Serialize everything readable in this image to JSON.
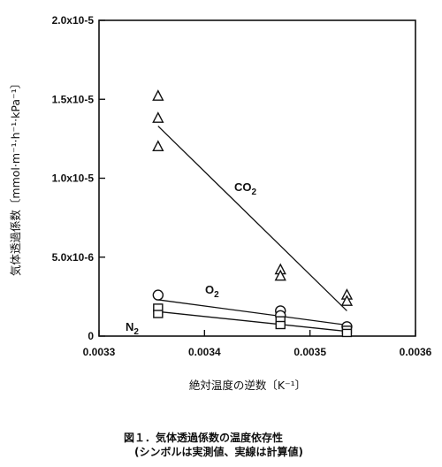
{
  "chart_data": {
    "type": "scatter",
    "xlabel": "絶対温度の逆数〔K⁻¹〕",
    "ylabel": "気体透過係数〔mmol·m⁻¹·h⁻¹·kPa⁻¹〕",
    "xlim": [
      0.0033,
      0.0036
    ],
    "ylim": [
      0,
      2e-05
    ],
    "xticks": [
      0.0033,
      0.0034,
      0.0035,
      0.0036
    ],
    "xtick_labels": [
      "0.0033",
      "0.0034",
      "0.0035",
      "0.0036"
    ],
    "yticks": [
      0,
      5e-06,
      1e-05,
      1.5e-05,
      2e-05
    ],
    "ytick_labels": [
      "0",
      "5.0x10-6",
      "1.0x10-5",
      "1.5x10-5",
      "2.0x10-5"
    ],
    "grid": false,
    "series": [
      {
        "name": "CO2",
        "marker": "triangle",
        "points": [
          [
            0.003356,
            1.52e-05
          ],
          [
            0.003356,
            1.38e-05
          ],
          [
            0.003356,
            1.2e-05
          ],
          [
            0.003472,
            4.2e-06
          ],
          [
            0.003472,
            3.8e-06
          ],
          [
            0.003535,
            2.6e-06
          ],
          [
            0.003535,
            2.2e-06
          ]
        ],
        "fit_line": [
          [
            0.003356,
            1.33e-05
          ],
          [
            0.003535,
            1.6e-06
          ]
        ]
      },
      {
        "name": "O2",
        "marker": "circle",
        "points": [
          [
            0.003356,
            2.6e-06
          ],
          [
            0.003472,
            1.6e-06
          ],
          [
            0.003472,
            1.3e-06
          ],
          [
            0.003535,
            6e-07
          ]
        ],
        "fit_line": [
          [
            0.003356,
            2.3e-06
          ],
          [
            0.003535,
            7e-07
          ]
        ]
      },
      {
        "name": "N2",
        "marker": "square",
        "points": [
          [
            0.003356,
            1.8e-06
          ],
          [
            0.003356,
            1.4e-06
          ],
          [
            0.003472,
            1e-06
          ],
          [
            0.003472,
            7e-07
          ],
          [
            0.003535,
            4e-07
          ],
          [
            0.003535,
            2e-07
          ]
        ],
        "fit_line": [
          [
            0.003356,
            1.55e-06
          ],
          [
            0.003535,
            3e-07
          ]
        ]
      }
    ]
  },
  "caption": {
    "line1": "図１．気体透過係数の温度依存性",
    "line2": "(シンボルは実測値、実線は計算値)"
  }
}
